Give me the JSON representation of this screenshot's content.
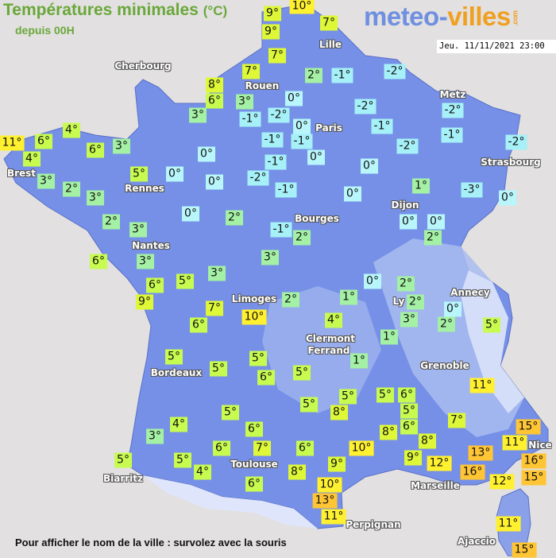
{
  "header": {
    "title": "Températures minimales",
    "unit": "(°C)",
    "subtitle": "depuis 00H",
    "logo_part1": "meteo-",
    "logo_part2": "villes",
    "logo_part3": ".com",
    "datetime": "Jeu. 11/11/2021 23:00"
  },
  "footer": "Pour afficher le nom de la ville : survolez avec la souris",
  "colors": {
    "sea": "#e2e0e0",
    "land": "#7590e6",
    "title": "#6aa83a",
    "temp_le_minus1": "#a6f0f8",
    "temp_0": "#b8f6fb",
    "temp_1_3": "#a4f0a4",
    "temp_4_6": "#c8fb50",
    "temp_7_9": "#def838",
    "temp_10_12": "#fff030",
    "temp_13_plus": "#ffc535"
  },
  "cities": [
    "Cherbourg",
    "Lille",
    "Rouen",
    "Paris",
    "Metz",
    "Strasbourg",
    "Brest",
    "Rennes",
    "Dijon",
    "Bourges",
    "Nantes",
    "Limoges",
    "Annecy",
    "Ly",
    "Clermont",
    "Ferrand",
    "Grenoble",
    "Bordeaux",
    "Toulouse",
    "Biarritz",
    "Marseille",
    "Nice",
    "Perpignan",
    "Ajaccio"
  ],
  "stations": [
    9,
    10,
    9,
    7,
    7,
    7,
    2,
    -1,
    -2,
    8,
    6,
    3,
    0,
    -1,
    -2,
    -2,
    3,
    0,
    -1,
    -2,
    -1,
    -1,
    -1,
    0,
    -2,
    -2,
    11,
    4,
    6,
    4,
    6,
    3,
    0,
    0,
    5,
    0,
    0,
    -2,
    -1,
    -1,
    3,
    2,
    3,
    1,
    -3,
    0,
    0,
    2,
    0,
    0,
    0,
    2,
    -1,
    2,
    2,
    3,
    3,
    6,
    3,
    3,
    5,
    6,
    9,
    0,
    2,
    2,
    1,
    2,
    0,
    3,
    2,
    5,
    7,
    6,
    10,
    4,
    1,
    1,
    5,
    5,
    5,
    6,
    5,
    5,
    5,
    6,
    5,
    8,
    5,
    7,
    11,
    8,
    6,
    5,
    6,
    4,
    3,
    6,
    7,
    6,
    10,
    8,
    9,
    12,
    13,
    16,
    11,
    15,
    16,
    15,
    12,
    5,
    5,
    4,
    6,
    8,
    9,
    10,
    13,
    11,
    11,
    15
  ]
}
